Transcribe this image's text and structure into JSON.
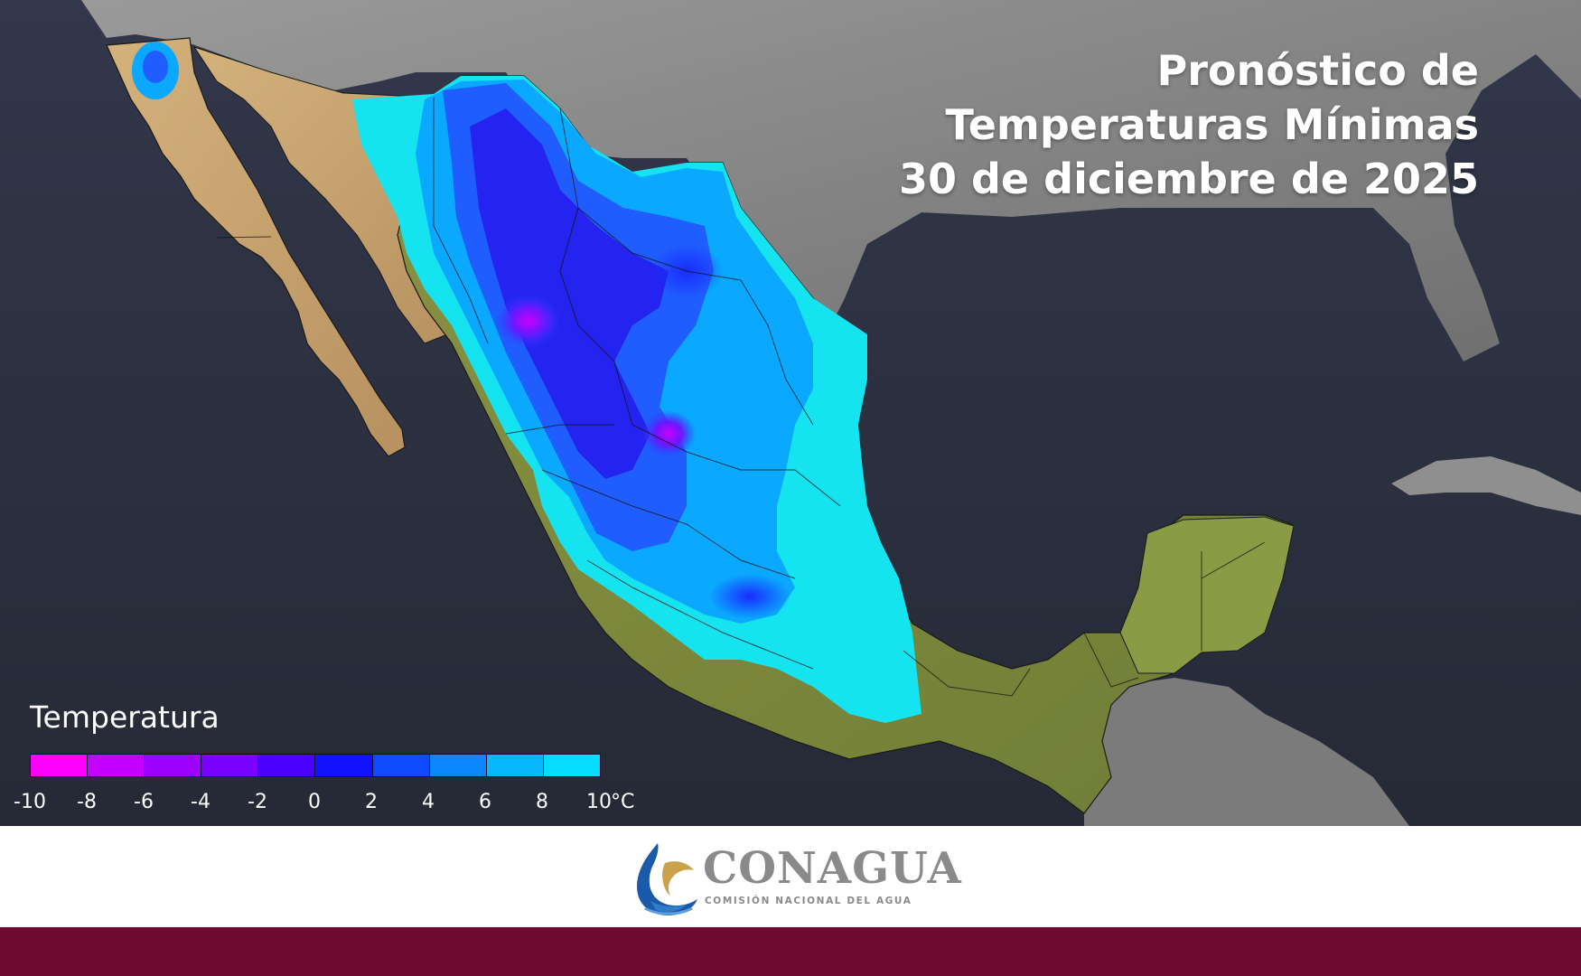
{
  "title": {
    "line1": "Pronóstico de",
    "line2": "Temperaturas Mínimas",
    "line3": "30 de diciembre de 2025"
  },
  "legend": {
    "title": "Temperatura",
    "ticks": [
      "-10",
      "-8",
      "-6",
      "-4",
      "-2",
      "0",
      "2",
      "4",
      "6",
      "8",
      "10"
    ],
    "unit": "°C",
    "colors": [
      "#ff00ff",
      "#c400ff",
      "#9e00ff",
      "#7a00ff",
      "#4a00ff",
      "#1212ff",
      "#0c4bff",
      "#0a86ff",
      "#08b8ff",
      "#05dcff",
      "#00ffe6"
    ]
  },
  "footer": {
    "logo_name": "CONAGUA",
    "logo_subtitle": "COMISIÓN NACIONAL DEL AGUA",
    "band_color": "#6e0a2f"
  },
  "map": {
    "ocean_color": "#2b2f3a",
    "land_color": "#8a8a8a",
    "dry_land_color": "#c8a877",
    "vegetated_land_color": "#7d8a3e"
  }
}
